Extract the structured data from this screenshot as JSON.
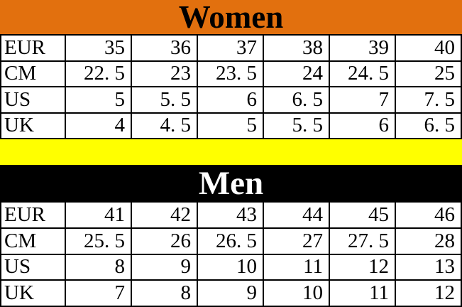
{
  "colors": {
    "women_banner_bg": "#E2700E",
    "women_banner_text": "#000000",
    "men_banner_bg": "#000000",
    "men_banner_text": "#FFFFFF",
    "separator_bg": "#FFFF00",
    "table_bg": "#FFFFFF",
    "grid_line": "#000000",
    "cell_text": "#000000"
  },
  "chart_data": [
    {
      "type": "table",
      "title": "Women",
      "rows": [
        {
          "label": "EUR",
          "values": [
            "35",
            "36",
            "37",
            "38",
            "39",
            "40"
          ]
        },
        {
          "label": "CM",
          "values": [
            "22.5",
            "23",
            "23.5",
            "24",
            "24.5",
            "25"
          ]
        },
        {
          "label": "US",
          "values": [
            "5",
            "5.5",
            "6",
            "6.5",
            "7",
            "7.5"
          ]
        },
        {
          "label": "UK",
          "values": [
            "4",
            "4.5",
            "5",
            "5.5",
            "6",
            "6.5"
          ]
        }
      ]
    },
    {
      "type": "table",
      "title": "Men",
      "rows": [
        {
          "label": "EUR",
          "values": [
            "41",
            "42",
            "43",
            "44",
            "45",
            "46"
          ]
        },
        {
          "label": "CM",
          "values": [
            "25.5",
            "26",
            "26.5",
            "27",
            "27.5",
            "28"
          ]
        },
        {
          "label": "US",
          "values": [
            "8",
            "9",
            "10",
            "11",
            "12",
            "13"
          ]
        },
        {
          "label": "UK",
          "values": [
            "7",
            "8",
            "9",
            "10",
            "11",
            "12"
          ]
        }
      ]
    }
  ]
}
